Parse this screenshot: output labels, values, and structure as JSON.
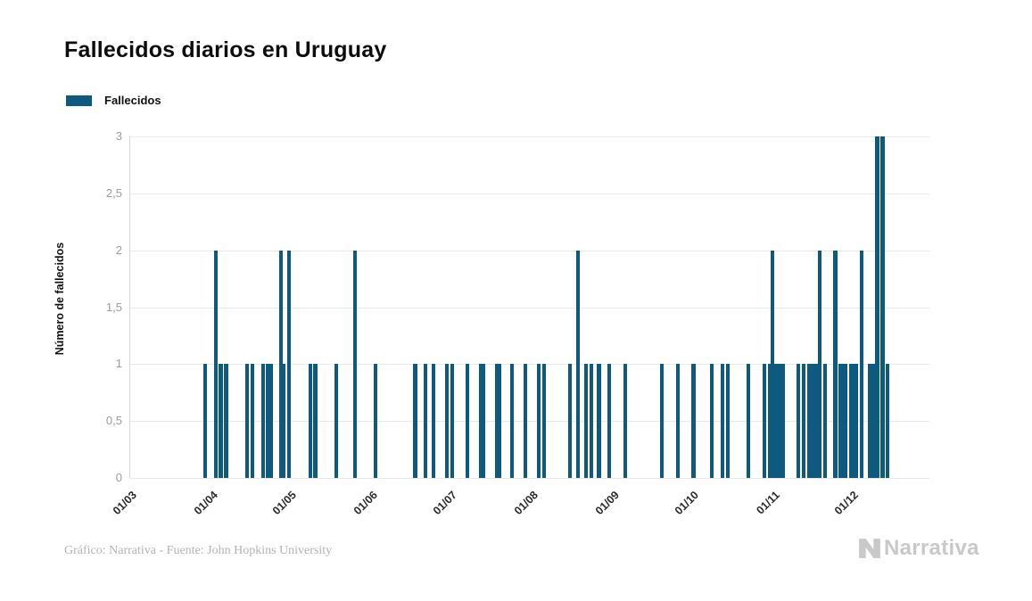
{
  "chart": {
    "title": "Fallecidos diarios en Uruguay",
    "legend_label": "Fallecidos",
    "ylabel": "Número de fallecidos",
    "bar_color": "#0e5a7e",
    "grid_color": "#e9e9e9",
    "axis_color": "#d6d6d6"
  },
  "footer": {
    "credit": "Gráfico: Narrativa - Fuente: John Hopkins University",
    "logo_text": "Narrativa"
  },
  "chart_data": {
    "type": "bar",
    "title": "Fallecidos diarios en Uruguay",
    "xlabel": "",
    "ylabel": "Número de fallecidos",
    "legend": [
      "Fallecidos"
    ],
    "legend_position": "top-left",
    "grid": true,
    "ylim": [
      0,
      3
    ],
    "y_ticks": [
      {
        "label": "0",
        "value": 0
      },
      {
        "label": "0,5",
        "value": 0.5
      },
      {
        "label": "1",
        "value": 1
      },
      {
        "label": "1,5",
        "value": 1.5
      },
      {
        "label": "2",
        "value": 2
      },
      {
        "label": "2,5",
        "value": 2.5
      },
      {
        "label": "3",
        "value": 3
      }
    ],
    "x_ticks": [
      "01/03",
      "01/04",
      "01/05",
      "01/06",
      "01/07",
      "01/08",
      "01/09",
      "01/10",
      "01/11",
      "01/12"
    ],
    "points": [
      {
        "date": "31/03",
        "value": 1
      },
      {
        "date": "04/04",
        "value": 2
      },
      {
        "date": "06/04",
        "value": 1
      },
      {
        "date": "08/04",
        "value": 1
      },
      {
        "date": "16/04",
        "value": 1
      },
      {
        "date": "18/04",
        "value": 1
      },
      {
        "date": "22/04",
        "value": 1
      },
      {
        "date": "24/04",
        "value": 1
      },
      {
        "date": "25/04",
        "value": 1
      },
      {
        "date": "29/04",
        "value": 2
      },
      {
        "date": "30/04",
        "value": 1
      },
      {
        "date": "02/05",
        "value": 2
      },
      {
        "date": "10/05",
        "value": 1
      },
      {
        "date": "12/05",
        "value": 1
      },
      {
        "date": "20/05",
        "value": 1
      },
      {
        "date": "27/05",
        "value": 2
      },
      {
        "date": "04/06",
        "value": 1
      },
      {
        "date": "19/06",
        "value": 1
      },
      {
        "date": "23/06",
        "value": 1
      },
      {
        "date": "26/06",
        "value": 1
      },
      {
        "date": "01/07",
        "value": 1
      },
      {
        "date": "03/07",
        "value": 1
      },
      {
        "date": "09/07",
        "value": 1
      },
      {
        "date": "14/07",
        "value": 1
      },
      {
        "date": "15/07",
        "value": 1
      },
      {
        "date": "20/07",
        "value": 1
      },
      {
        "date": "21/07",
        "value": 1
      },
      {
        "date": "26/07",
        "value": 1
      },
      {
        "date": "31/07",
        "value": 1
      },
      {
        "date": "05/08",
        "value": 1
      },
      {
        "date": "07/08",
        "value": 1
      },
      {
        "date": "17/08",
        "value": 1
      },
      {
        "date": "20/08",
        "value": 2
      },
      {
        "date": "23/08",
        "value": 1
      },
      {
        "date": "25/08",
        "value": 1
      },
      {
        "date": "28/08",
        "value": 1
      },
      {
        "date": "01/09",
        "value": 1
      },
      {
        "date": "07/09",
        "value": 1
      },
      {
        "date": "21/09",
        "value": 1
      },
      {
        "date": "27/09",
        "value": 1
      },
      {
        "date": "03/10",
        "value": 1
      },
      {
        "date": "10/10",
        "value": 1
      },
      {
        "date": "14/10",
        "value": 1
      },
      {
        "date": "16/10",
        "value": 1
      },
      {
        "date": "24/10",
        "value": 1
      },
      {
        "date": "30/10",
        "value": 1
      },
      {
        "date": "01/11",
        "value": 1
      },
      {
        "date": "02/11",
        "value": 2
      },
      {
        "date": "03/11",
        "value": 1
      },
      {
        "date": "04/11",
        "value": 1
      },
      {
        "date": "05/11",
        "value": 1
      },
      {
        "date": "06/11",
        "value": 1
      },
      {
        "date": "12/11",
        "value": 1
      },
      {
        "date": "14/11",
        "value": 1
      },
      {
        "date": "16/11",
        "value": 1
      },
      {
        "date": "17/11",
        "value": 1
      },
      {
        "date": "18/11",
        "value": 1
      },
      {
        "date": "19/11",
        "value": 1
      },
      {
        "date": "20/11",
        "value": 2
      },
      {
        "date": "22/11",
        "value": 1
      },
      {
        "date": "26/11",
        "value": 2
      },
      {
        "date": "28/11",
        "value": 1
      },
      {
        "date": "29/11",
        "value": 1
      },
      {
        "date": "30/11",
        "value": 1
      },
      {
        "date": "02/12",
        "value": 1
      },
      {
        "date": "03/12",
        "value": 1
      },
      {
        "date": "04/12",
        "value": 1
      },
      {
        "date": "06/12",
        "value": 2
      },
      {
        "date": "09/12",
        "value": 1
      },
      {
        "date": "10/12",
        "value": 1
      },
      {
        "date": "11/12",
        "value": 1
      },
      {
        "date": "12/12",
        "value": 3
      },
      {
        "date": "14/12",
        "value": 3
      },
      {
        "date": "16/12",
        "value": 1
      }
    ]
  }
}
